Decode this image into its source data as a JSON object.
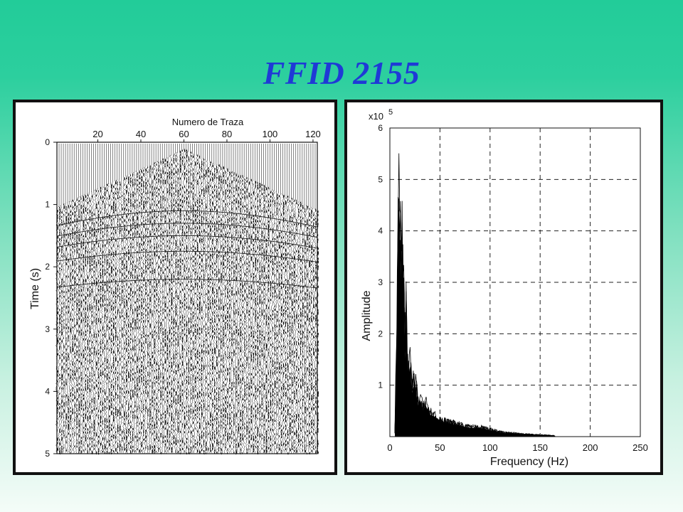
{
  "title": "FFID 2155",
  "chart_data": [
    {
      "type": "seismic-gather",
      "xlabel": "Numero de Traza",
      "ylabel": "Time (s)",
      "x_ticks": [
        20,
        40,
        60,
        80,
        100,
        120
      ],
      "y_ticks": [
        0,
        1,
        2,
        3,
        4,
        5
      ],
      "xlim": [
        1,
        122
      ],
      "ylim": [
        0,
        5
      ],
      "apex_trace": 60,
      "first_break_time_at_edges": 1.05
    },
    {
      "type": "line",
      "xlabel": "Frequency (Hz)",
      "ylabel": "Amplitude",
      "scale_label": "x10",
      "scale_exponent": "5",
      "xlim": [
        0,
        250
      ],
      "ylim": [
        0,
        6
      ],
      "x_ticks": [
        0,
        50,
        100,
        150,
        200,
        250
      ],
      "y_ticks": [
        1,
        2,
        3,
        4,
        5,
        6
      ],
      "grid": true,
      "series": [
        {
          "x": [
            5,
            7,
            8,
            9,
            10,
            11,
            12,
            13,
            14,
            15,
            16,
            18,
            20,
            22,
            25,
            28,
            30,
            33,
            36,
            40,
            45,
            50,
            60,
            70,
            80,
            90,
            100,
            110,
            120,
            130,
            140,
            150,
            165
          ],
          "y": [
            0.1,
            2.5,
            4.6,
            5.4,
            4.8,
            3.6,
            4.3,
            3.7,
            3.2,
            1.8,
            2.9,
            1.3,
            1.6,
            1.0,
            1.25,
            0.7,
            0.85,
            0.6,
            0.7,
            0.5,
            0.45,
            0.35,
            0.3,
            0.25,
            0.2,
            0.2,
            0.15,
            0.1,
            0.08,
            0.06,
            0.05,
            0.04,
            0.02
          ]
        }
      ]
    }
  ]
}
